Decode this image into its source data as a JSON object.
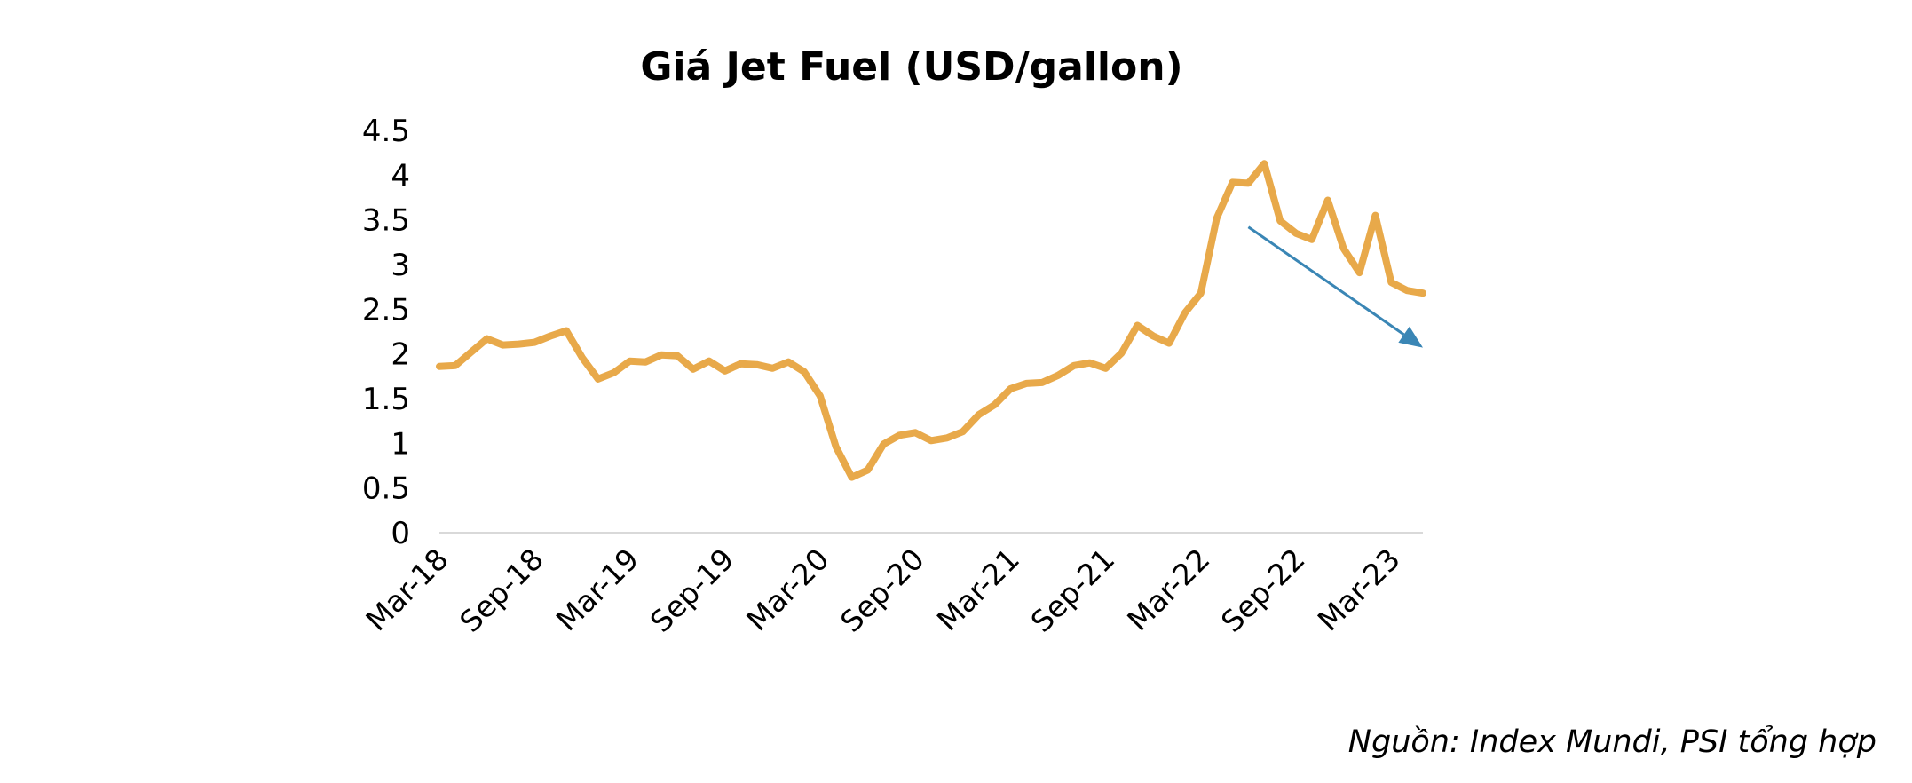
{
  "chart_data": {
    "type": "line",
    "title": "Giá Jet Fuel (USD/gallon)",
    "xlabel": "",
    "ylabel": "",
    "ylim": [
      0,
      4.5
    ],
    "yticks": [
      "0",
      "0.5",
      "1",
      "1.5",
      "2",
      "2.5",
      "3",
      "3.5",
      "4",
      "4.5"
    ],
    "xticks": [
      "Mar-18",
      "Sep-18",
      "Mar-19",
      "Sep-19",
      "Mar-20",
      "Sep-20",
      "Mar-21",
      "Sep-21",
      "Mar-22",
      "Sep-22",
      "Mar-23"
    ],
    "grid": false,
    "legend": "none",
    "line_color": "#E8A94A",
    "x": [
      "Mar-18",
      "Apr-18",
      "May-18",
      "Jun-18",
      "Jul-18",
      "Aug-18",
      "Sep-18",
      "Oct-18",
      "Nov-18",
      "Dec-18",
      "Jan-19",
      "Feb-19",
      "Mar-19",
      "Apr-19",
      "May-19",
      "Jun-19",
      "Jul-19",
      "Aug-19",
      "Sep-19",
      "Oct-19",
      "Nov-19",
      "Dec-19",
      "Jan-20",
      "Feb-20",
      "Mar-20",
      "Apr-20",
      "May-20",
      "Jun-20",
      "Jul-20",
      "Aug-20",
      "Sep-20",
      "Oct-20",
      "Nov-20",
      "Dec-20",
      "Jan-21",
      "Feb-21",
      "Mar-21",
      "Apr-21",
      "May-21",
      "Jun-21",
      "Jul-21",
      "Aug-21",
      "Sep-21",
      "Oct-21",
      "Nov-21",
      "Dec-21",
      "Jan-22",
      "Feb-22",
      "Mar-22",
      "Apr-22",
      "May-22",
      "Jun-22",
      "Jul-22",
      "Aug-22",
      "Sep-22",
      "Oct-22",
      "Nov-22",
      "Dec-22",
      "Jan-23",
      "Feb-23",
      "Mar-23",
      "Apr-23",
      "May-23"
    ],
    "values": [
      1.86,
      1.87,
      2.02,
      2.17,
      2.1,
      2.11,
      2.13,
      2.2,
      2.26,
      1.96,
      1.72,
      1.79,
      1.92,
      1.91,
      1.99,
      1.98,
      1.83,
      1.92,
      1.81,
      1.89,
      1.88,
      1.84,
      1.91,
      1.8,
      1.53,
      0.96,
      0.62,
      0.7,
      0.99,
      1.09,
      1.12,
      1.03,
      1.06,
      1.13,
      1.32,
      1.43,
      1.61,
      1.67,
      1.68,
      1.76,
      1.87,
      1.9,
      1.84,
      2.01,
      2.32,
      2.2,
      2.12,
      2.46,
      2.68,
      3.52,
      3.92,
      3.91,
      4.13,
      3.49,
      3.35,
      3.28,
      3.72,
      3.18,
      2.91,
      3.55,
      2.8,
      2.71,
      2.68
    ],
    "trend_arrow_color": "#3A86B5",
    "trend_arrow": {
      "from": [
        "Jun-22",
        3.42
      ],
      "to": [
        "May-23",
        2.07
      ]
    }
  },
  "source": "Nguồn: Index Mundi, PSI tổng hợp"
}
